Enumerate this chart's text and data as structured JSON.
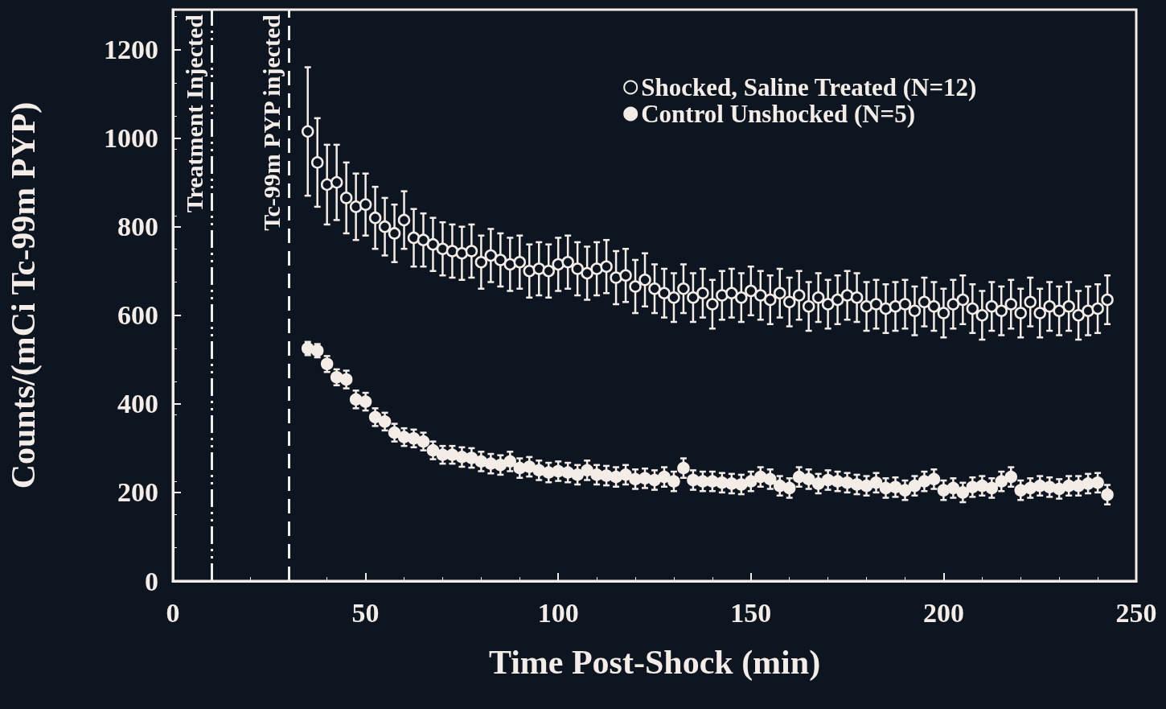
{
  "chart_data": {
    "type": "scatter",
    "xlabel": "Time Post-Shock (min)",
    "ylabel": "Counts/(mCi Tc-99m PYP)",
    "x": [
      35,
      37.5,
      40,
      42.5,
      45,
      47.5,
      50,
      52.5,
      55,
      57.5,
      60,
      62.5,
      65,
      67.5,
      70,
      72.5,
      75,
      77.5,
      80,
      82.5,
      85,
      87.5,
      90,
      92.5,
      95,
      97.5,
      100,
      102.5,
      105,
      107.5,
      110,
      112.5,
      115,
      117.5,
      120,
      122.5,
      125,
      127.5,
      130,
      132.5,
      135,
      137.5,
      140,
      142.5,
      145,
      147.5,
      150,
      152.5,
      155,
      157.5,
      160,
      162.5,
      165,
      167.5,
      170,
      172.5,
      175,
      177.5,
      180,
      182.5,
      185,
      187.5,
      190,
      192.5,
      195,
      197.5,
      200,
      202.5,
      205,
      207.5,
      210,
      212.5,
      215,
      217.5,
      220,
      222.5,
      225,
      227.5,
      230,
      232.5,
      235,
      237.5,
      240,
      242.5
    ],
    "series": [
      {
        "name": "Shocked, Saline Treated (N=12)",
        "color": "#f4ece6",
        "marker": "circle-open",
        "values": [
          1015,
          945,
          895,
          900,
          865,
          845,
          850,
          820,
          800,
          785,
          815,
          775,
          770,
          760,
          750,
          745,
          740,
          745,
          720,
          735,
          725,
          715,
          720,
          700,
          705,
          700,
          715,
          720,
          705,
          695,
          705,
          710,
          685,
          690,
          665,
          680,
          660,
          650,
          640,
          660,
          640,
          650,
          625,
          645,
          650,
          640,
          655,
          645,
          635,
          650,
          630,
          645,
          620,
          640,
          625,
          635,
          645,
          640,
          620,
          625,
          615,
          620,
          625,
          610,
          630,
          620,
          605,
          625,
          635,
          615,
          600,
          620,
          610,
          625,
          605,
          630,
          605,
          620,
          610,
          620,
          600,
          610,
          615,
          635
        ],
        "errors": [
          145,
          100,
          90,
          85,
          80,
          75,
          70,
          70,
          65,
          65,
          65,
          65,
          60,
          60,
          60,
          60,
          60,
          60,
          60,
          60,
          60,
          60,
          60,
          60,
          60,
          60,
          60,
          60,
          60,
          60,
          60,
          60,
          60,
          60,
          60,
          60,
          55,
          55,
          55,
          55,
          55,
          55,
          55,
          55,
          55,
          55,
          55,
          55,
          55,
          55,
          55,
          55,
          55,
          55,
          55,
          55,
          55,
          55,
          55,
          55,
          55,
          55,
          55,
          55,
          55,
          55,
          55,
          55,
          55,
          55,
          55,
          55,
          55,
          55,
          55,
          55,
          55,
          55,
          55,
          55,
          55,
          55,
          55,
          55
        ]
      },
      {
        "name": "Control Unshocked (N=5)",
        "color": "#f4ece6",
        "marker": "circle",
        "values": [
          525,
          520,
          490,
          460,
          455,
          410,
          405,
          370,
          360,
          335,
          325,
          322,
          315,
          295,
          285,
          285,
          280,
          278,
          270,
          265,
          262,
          270,
          255,
          258,
          250,
          245,
          248,
          245,
          240,
          250,
          240,
          238,
          235,
          240,
          230,
          232,
          228,
          235,
          225,
          255,
          228,
          225,
          225,
          222,
          220,
          218,
          225,
          235,
          230,
          215,
          210,
          235,
          230,
          220,
          228,
          225,
          222,
          218,
          215,
          222,
          210,
          212,
          205,
          215,
          225,
          230,
          205,
          210,
          200,
          212,
          215,
          210,
          225,
          235,
          205,
          210,
          215,
          212,
          208,
          215,
          215,
          220,
          222,
          195
        ],
        "errors": [
          15,
          15,
          18,
          18,
          20,
          20,
          20,
          20,
          20,
          20,
          20,
          20,
          20,
          20,
          20,
          20,
          22,
          22,
          22,
          22,
          22,
          22,
          22,
          22,
          22,
          22,
          22,
          22,
          22,
          22,
          22,
          22,
          22,
          22,
          22,
          22,
          22,
          22,
          22,
          22,
          22,
          22,
          22,
          22,
          22,
          22,
          22,
          22,
          22,
          22,
          22,
          22,
          22,
          22,
          22,
          22,
          22,
          22,
          22,
          22,
          22,
          22,
          22,
          22,
          22,
          22,
          22,
          22,
          22,
          22,
          22,
          22,
          22,
          22,
          22,
          22,
          22,
          22,
          22,
          22,
          22,
          22,
          22,
          22
        ]
      }
    ],
    "xlim": [
      0,
      250
    ],
    "xticks": [
      0,
      50,
      100,
      150,
      200,
      250
    ],
    "ylim": [
      0,
      1290
    ],
    "yticks": [
      0,
      200,
      400,
      600,
      800,
      1000,
      1200
    ],
    "ref_lines": [
      {
        "axis": "x",
        "value": 10,
        "label": "Treatment Injected",
        "color": "#f4ece6",
        "line_style": "dashdot"
      },
      {
        "axis": "x",
        "value": 30,
        "label": "Tc-99m PYP injected",
        "color": "#f4ece6",
        "line_style": "dashed"
      }
    ],
    "grid": false,
    "legend": "top right"
  }
}
